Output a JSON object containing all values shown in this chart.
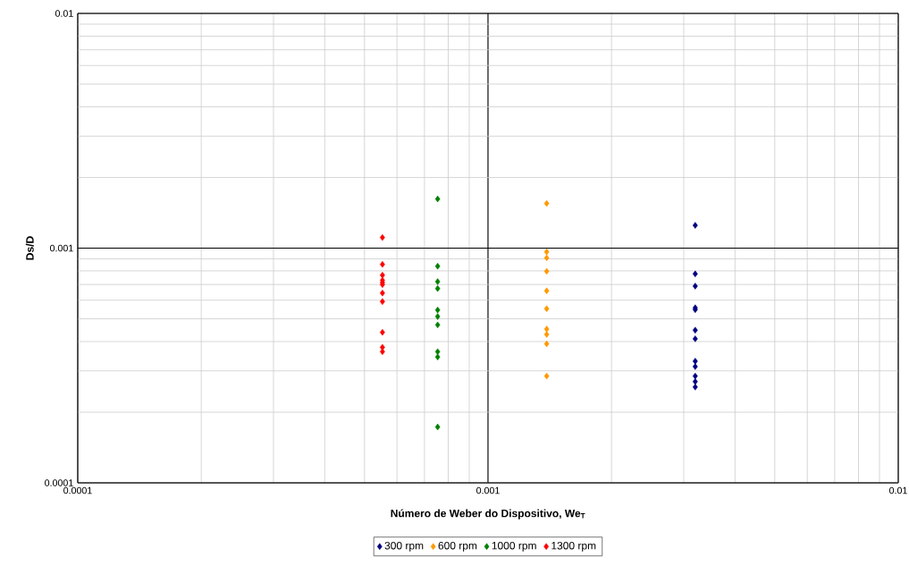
{
  "chart_data": {
    "type": "scatter",
    "xlabel": "Número de Weber do Dispositivo, We$_{T}$",
    "ylabel": "Ds/D",
    "log": "xy",
    "grid": true,
    "legend": "bottom",
    "marker": "diamond",
    "xlim": [
      0.0001,
      0.01
    ],
    "ylim": [
      0.0001,
      0.01
    ],
    "xticks": [
      {
        "value": 0.0001,
        "label": "0.0001"
      },
      {
        "value": 0.001,
        "label": "0.001"
      },
      {
        "value": 0.01,
        "label": "0.01"
      }
    ],
    "yticks": [
      {
        "value": 0.0001,
        "label": "0.0001"
      },
      {
        "value": 0.001,
        "label": "0.001"
      },
      {
        "value": 0.01,
        "label": "0.01"
      }
    ],
    "series": [
      {
        "name": "300 rpm",
        "color": "#000080",
        "x": [
          0.0032,
          0.0032,
          0.0032,
          0.0032,
          0.0032,
          0.0032,
          0.0032,
          0.0032,
          0.0032,
          0.0032,
          0.0032,
          0.0032
        ],
        "values": [
          0.00125,
          0.000777,
          0.000689,
          0.000557,
          0.000547,
          0.000447,
          0.000411,
          0.00033,
          0.000313,
          0.000285,
          0.00027,
          0.000256
        ]
      },
      {
        "name": "600 rpm",
        "color": "#ff9900",
        "x": [
          0.00139,
          0.00139,
          0.00139,
          0.00139,
          0.00139,
          0.00139,
          0.00139,
          0.00139,
          0.00139,
          0.00139
        ],
        "values": [
          0.00155,
          0.000964,
          0.000909,
          0.000797,
          0.000658,
          0.000552,
          0.000452,
          0.000429,
          0.000391,
          0.000285
        ]
      },
      {
        "name": "1000 rpm",
        "color": "#008000",
        "x": [
          0.000754,
          0.000754,
          0.000754,
          0.000754,
          0.000754,
          0.000754,
          0.000754,
          0.000754,
          0.000754,
          0.000754
        ],
        "values": [
          0.00162,
          0.000838,
          0.00072,
          0.000673,
          0.000545,
          0.000511,
          0.000471,
          0.000362,
          0.000344,
          0.000173
        ]
      },
      {
        "name": "1300 rpm",
        "color": "#ff0000",
        "x": [
          0.000553,
          0.000553,
          0.000553,
          0.000553,
          0.000553,
          0.000553,
          0.000553,
          0.000553,
          0.000553,
          0.000553,
          0.000553
        ],
        "values": [
          0.00111,
          0.000853,
          0.000767,
          0.00073,
          0.000713,
          0.000699,
          0.000644,
          0.000592,
          0.000438,
          0.000378,
          0.000362
        ]
      }
    ]
  }
}
